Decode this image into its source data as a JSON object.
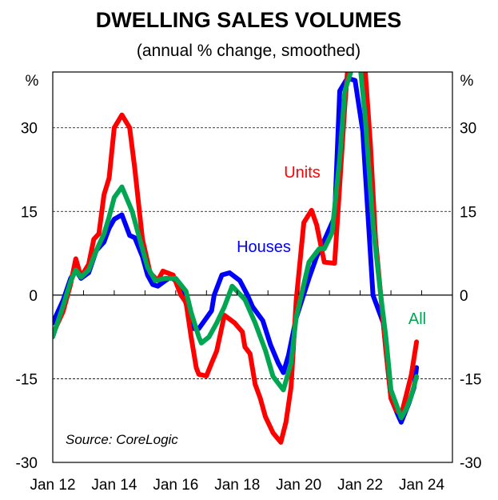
{
  "chart_data": {
    "type": "line",
    "title": "DWELLING SALES VOLUMES",
    "subtitle": "(annual % change, smoothed)",
    "ylabel_left": "%",
    "ylabel_right": "%",
    "ylim": [
      -30,
      40
    ],
    "yticks": [
      30,
      15,
      0,
      -15,
      -30
    ],
    "ytick_labels": [
      "30",
      "15",
      "0",
      "-15",
      "-30"
    ],
    "xlim": [
      "2012-01",
      "2025-01"
    ],
    "xtick_labels": [
      "Jan 12",
      "Jan 14",
      "Jan 16",
      "Jan 18",
      "Jan 20",
      "Jan 22",
      "Jan 24"
    ],
    "xtick_dates": [
      "2012-01",
      "2014-01",
      "2016-01",
      "2018-01",
      "2020-01",
      "2022-01",
      "2024-01"
    ],
    "grid": "dashed horizontal at 30, 15, -15",
    "source": "Source: CoreLogic",
    "series": [
      {
        "name": "Houses",
        "color": "#0000FF",
        "points": [
          [
            "2012-01",
            -5
          ],
          [
            "2012-05",
            -1
          ],
          [
            "2012-08",
            3
          ],
          [
            "2012-10",
            4.5
          ],
          [
            "2012-12",
            3
          ],
          [
            "2013-03",
            4
          ],
          [
            "2013-06",
            8
          ],
          [
            "2013-09",
            9.5
          ],
          [
            "2013-11",
            12
          ],
          [
            "2014-01",
            13.6
          ],
          [
            "2014-04",
            14.4
          ],
          [
            "2014-07",
            10.7
          ],
          [
            "2014-09",
            10.3
          ],
          [
            "2014-12",
            6.9
          ],
          [
            "2015-02",
            3.6
          ],
          [
            "2015-04",
            1.9
          ],
          [
            "2015-06",
            1.6
          ],
          [
            "2015-09",
            2.6
          ],
          [
            "2015-11",
            3.2
          ],
          [
            "2016-01",
            2.6
          ],
          [
            "2016-04",
            0
          ],
          [
            "2016-08",
            -6
          ],
          [
            "2016-10",
            -6
          ],
          [
            "2017-01",
            -4.1
          ],
          [
            "2017-03",
            -2.8
          ],
          [
            "2017-04",
            0
          ],
          [
            "2017-07",
            3.6
          ],
          [
            "2017-10",
            4
          ],
          [
            "2018-02",
            2.6
          ],
          [
            "2018-05",
            0
          ],
          [
            "2018-07",
            -2.1
          ],
          [
            "2018-11",
            -4.6
          ],
          [
            "2019-02",
            -8.9
          ],
          [
            "2019-05",
            -12.2
          ],
          [
            "2019-07",
            -13.9
          ],
          [
            "2019-09",
            -10.8
          ],
          [
            "2019-12",
            -4.1
          ],
          [
            "2020-05",
            3
          ],
          [
            "2020-08",
            6.9
          ],
          [
            "2020-11",
            9.8
          ],
          [
            "2021-03",
            14
          ],
          [
            "2021-05",
            36.6
          ],
          [
            "2021-08",
            38.9
          ],
          [
            "2021-11",
            38.5
          ],
          [
            "2022-02",
            29.4
          ],
          [
            "2022-06",
            0
          ],
          [
            "2022-10",
            -5
          ],
          [
            "2023-01",
            -18.5
          ],
          [
            "2023-04",
            -21.8
          ],
          [
            "2023-05",
            -22.8
          ],
          [
            "2023-08",
            -19.4
          ],
          [
            "2023-10",
            -16.6
          ],
          [
            "2023-11",
            -13
          ]
        ]
      },
      {
        "name": "Units",
        "color": "#FF0000",
        "points": [
          [
            "2012-01",
            -7
          ],
          [
            "2012-05",
            -3
          ],
          [
            "2012-08",
            2
          ],
          [
            "2012-10",
            6.5
          ],
          [
            "2012-12",
            3.3
          ],
          [
            "2013-03",
            5.5
          ],
          [
            "2013-05",
            10
          ],
          [
            "2013-07",
            11
          ],
          [
            "2013-09",
            18
          ],
          [
            "2013-11",
            21
          ],
          [
            "2014-01",
            30
          ],
          [
            "2014-04",
            32.3
          ],
          [
            "2014-07",
            30
          ],
          [
            "2014-09",
            22.7
          ],
          [
            "2014-12",
            10
          ],
          [
            "2015-03",
            4
          ],
          [
            "2015-06",
            2.6
          ],
          [
            "2015-08",
            4.3
          ],
          [
            "2015-12",
            3.6
          ],
          [
            "2016-03",
            0
          ],
          [
            "2016-05",
            -1.3
          ],
          [
            "2016-07",
            -7.5
          ],
          [
            "2016-09",
            -13
          ],
          [
            "2016-10",
            -14.2
          ],
          [
            "2017-01",
            -14.5
          ],
          [
            "2017-03",
            -12.2
          ],
          [
            "2017-05",
            -10
          ],
          [
            "2017-06",
            -7.9
          ],
          [
            "2017-08",
            -3.6
          ],
          [
            "2017-12",
            -5
          ],
          [
            "2018-03",
            -6.6
          ],
          [
            "2018-04",
            -9.3
          ],
          [
            "2018-06",
            -10.5
          ],
          [
            "2018-08",
            -16
          ],
          [
            "2018-10",
            -18.5
          ],
          [
            "2018-12",
            -21.8
          ],
          [
            "2019-03",
            -24.7
          ],
          [
            "2019-06",
            -26.4
          ],
          [
            "2019-08",
            -22.8
          ],
          [
            "2019-10",
            -16.5
          ],
          [
            "2019-12",
            -1
          ],
          [
            "2020-03",
            13
          ],
          [
            "2020-06",
            15.2
          ],
          [
            "2020-08",
            12.6
          ],
          [
            "2020-11",
            5.9
          ],
          [
            "2021-03",
            5.7
          ],
          [
            "2021-05",
            19.8
          ],
          [
            "2021-07",
            34
          ],
          [
            "2021-08",
            40
          ],
          [
            "2021-11",
            45
          ],
          [
            "2022-03",
            40
          ],
          [
            "2022-05",
            27
          ],
          [
            "2022-07",
            10
          ],
          [
            "2022-09",
            0
          ],
          [
            "2022-11",
            -9.9
          ],
          [
            "2023-01",
            -18.5
          ],
          [
            "2023-03",
            -20.6
          ],
          [
            "2023-05",
            -21.5
          ],
          [
            "2023-07",
            -17.9
          ],
          [
            "2023-09",
            -14.2
          ],
          [
            "2023-11",
            -8.4
          ]
        ]
      },
      {
        "name": "All",
        "color": "#00A651",
        "points": [
          [
            "2012-01",
            -7.5
          ],
          [
            "2012-05",
            -2
          ],
          [
            "2012-08",
            2.5
          ],
          [
            "2012-10",
            4.5
          ],
          [
            "2012-12",
            3.2
          ],
          [
            "2013-03",
            4.5
          ],
          [
            "2013-06",
            8
          ],
          [
            "2013-09",
            11
          ],
          [
            "2013-11",
            14
          ],
          [
            "2014-01",
            17.5
          ],
          [
            "2014-04",
            19.4
          ],
          [
            "2014-08",
            15
          ],
          [
            "2014-10",
            11.6
          ],
          [
            "2015-02",
            5
          ],
          [
            "2015-05",
            2.6
          ],
          [
            "2015-09",
            3
          ],
          [
            "2016-01",
            3
          ],
          [
            "2016-05",
            0.7
          ],
          [
            "2016-07",
            -3.1
          ],
          [
            "2016-10",
            -7.5
          ],
          [
            "2016-11",
            -8.6
          ],
          [
            "2017-02",
            -7.5
          ],
          [
            "2017-05",
            -5
          ],
          [
            "2017-08",
            -2.1
          ],
          [
            "2017-11",
            1.6
          ],
          [
            "2018-04",
            -0.8
          ],
          [
            "2018-08",
            -5
          ],
          [
            "2018-12",
            -9.9
          ],
          [
            "2019-03",
            -14.6
          ],
          [
            "2019-07",
            -17
          ],
          [
            "2019-10",
            -12.2
          ],
          [
            "2019-12",
            -4
          ],
          [
            "2020-02",
            0
          ],
          [
            "2020-05",
            5.9
          ],
          [
            "2020-09",
            8.3
          ],
          [
            "2020-11",
            8.3
          ],
          [
            "2021-02",
            11.2
          ],
          [
            "2021-05",
            24.5
          ],
          [
            "2021-07",
            36.6
          ],
          [
            "2021-10",
            41
          ],
          [
            "2022-01",
            41
          ],
          [
            "2022-03",
            31.7
          ],
          [
            "2022-06",
            12.6
          ],
          [
            "2022-09",
            0
          ],
          [
            "2022-11",
            -7.5
          ],
          [
            "2023-01",
            -17
          ],
          [
            "2023-05",
            -22
          ],
          [
            "2023-07",
            -20.4
          ],
          [
            "2023-09",
            -18
          ],
          [
            "2023-11",
            -14.6
          ]
        ]
      }
    ]
  }
}
